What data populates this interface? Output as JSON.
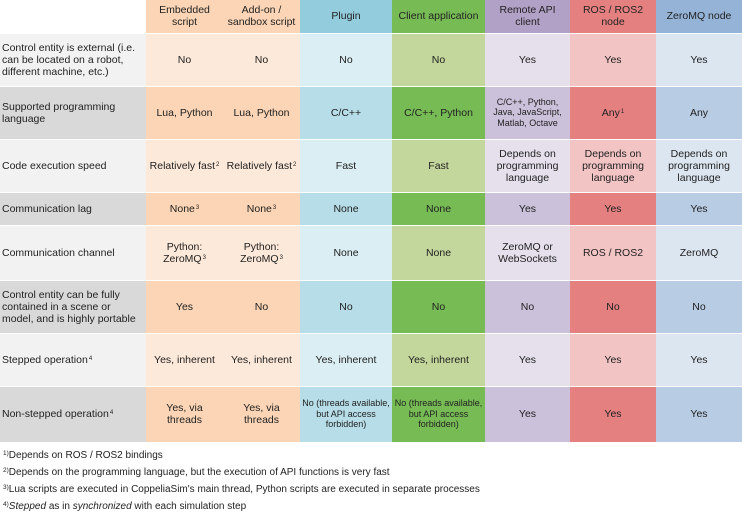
{
  "colors": {
    "label_odd": "#f2f2f2",
    "label_even": "#d9d9d9",
    "c1": [
      "#fde9d9",
      "#fbd5b5"
    ],
    "c2": [
      "#fde9d9",
      "#fbd5b5"
    ],
    "c3": [
      "#dbeef3",
      "#b7dde8"
    ],
    "c4": [
      "#c3d69b",
      "#77bb55"
    ],
    "c5": [
      "#e5e0ec",
      "#ccc1da"
    ],
    "c6": [
      "#f2c4c4",
      "#e58080"
    ],
    "c7": [
      "#dce6f1",
      "#b8cce4"
    ],
    "h": [
      "#ffffff",
      "#fbd5b5",
      "#fbd5b5",
      "#93cddd",
      "#77bb55",
      "#b2a1c7",
      "#e58080",
      "#95b3d7"
    ]
  },
  "headers": [
    {
      "text": "",
      "sup": ""
    },
    {
      "text": "Embedded script",
      "sup": ""
    },
    {
      "text": "Add-on / sandbox script",
      "sup": ""
    },
    {
      "text": "Plugin",
      "sup": ""
    },
    {
      "text": "Client application",
      "sup": ""
    },
    {
      "text": "Remote API client",
      "sup": ""
    },
    {
      "text": "ROS / ROS2 node",
      "sup": ""
    },
    {
      "text": "ZeroMQ node",
      "sup": ""
    }
  ],
  "rows": [
    {
      "label": "Control entity is external (i.e. can be located on a robot, different machine, etc.)",
      "label_sup": "",
      "cells": [
        {
          "t": "No",
          "s": ""
        },
        {
          "t": "No",
          "s": ""
        },
        {
          "t": "No",
          "s": ""
        },
        {
          "t": "No",
          "s": ""
        },
        {
          "t": "Yes",
          "s": ""
        },
        {
          "t": "Yes",
          "s": ""
        },
        {
          "t": "Yes",
          "s": ""
        }
      ]
    },
    {
      "label": "Supported programming language",
      "label_sup": "",
      "cells": [
        {
          "t": "Lua, Python",
          "s": ""
        },
        {
          "t": "Lua, Python",
          "s": ""
        },
        {
          "t": "C/C++",
          "s": ""
        },
        {
          "t": "C/C++, Python",
          "s": ""
        },
        {
          "t": "C/C++, Python, Java, JavaScript, Matlab, Octave",
          "s": "",
          "small": true
        },
        {
          "t": "Any",
          "s": "1"
        },
        {
          "t": "Any",
          "s": ""
        }
      ]
    },
    {
      "label": "Code execution speed",
      "label_sup": "",
      "cells": [
        {
          "t": "Relatively fast",
          "s": "2"
        },
        {
          "t": "Relatively fast",
          "s": "2"
        },
        {
          "t": "Fast",
          "s": ""
        },
        {
          "t": "Fast",
          "s": ""
        },
        {
          "t": "Depends on programming language",
          "s": ""
        },
        {
          "t": "Depends on programming language",
          "s": ""
        },
        {
          "t": "Depends on programming language",
          "s": ""
        }
      ]
    },
    {
      "label": "Communication lag",
      "label_sup": "",
      "cells": [
        {
          "t": "None",
          "s": "3"
        },
        {
          "t": "None",
          "s": "3"
        },
        {
          "t": "None",
          "s": ""
        },
        {
          "t": "None",
          "s": ""
        },
        {
          "t": "Yes",
          "s": ""
        },
        {
          "t": "Yes",
          "s": ""
        },
        {
          "t": "Yes",
          "s": ""
        }
      ]
    },
    {
      "label": "Communication channel",
      "label_sup": "",
      "cells": [
        {
          "t": "Python: ZeroMQ",
          "s": "3"
        },
        {
          "t": "Python: ZeroMQ",
          "s": "3"
        },
        {
          "t": "None",
          "s": ""
        },
        {
          "t": "None",
          "s": ""
        },
        {
          "t": "ZeroMQ or WebSockets",
          "s": ""
        },
        {
          "t": "ROS / ROS2",
          "s": ""
        },
        {
          "t": "ZeroMQ",
          "s": ""
        }
      ]
    },
    {
      "label": "Control entity can be fully contained in a scene or model, and is highly portable",
      "label_sup": "",
      "cells": [
        {
          "t": "Yes",
          "s": ""
        },
        {
          "t": "No",
          "s": ""
        },
        {
          "t": "No",
          "s": ""
        },
        {
          "t": "No",
          "s": ""
        },
        {
          "t": "No",
          "s": ""
        },
        {
          "t": "No",
          "s": ""
        },
        {
          "t": "No",
          "s": ""
        }
      ]
    },
    {
      "label": "Stepped operation",
      "label_sup": "4",
      "cells": [
        {
          "t": "Yes, inherent",
          "s": ""
        },
        {
          "t": "Yes, inherent",
          "s": ""
        },
        {
          "t": "Yes, inherent",
          "s": ""
        },
        {
          "t": "Yes, inherent",
          "s": ""
        },
        {
          "t": "Yes",
          "s": ""
        },
        {
          "t": "Yes",
          "s": ""
        },
        {
          "t": "Yes",
          "s": ""
        }
      ]
    },
    {
      "label": "Non-stepped operation",
      "label_sup": "4",
      "cells": [
        {
          "t": "Yes, via threads",
          "s": ""
        },
        {
          "t": "Yes, via threads",
          "s": ""
        },
        {
          "t": "No (threads available, but API access forbidden)",
          "s": "",
          "small": true
        },
        {
          "t": "No (threads available, but API access forbidden)",
          "s": "",
          "small": true
        },
        {
          "t": "Yes",
          "s": ""
        },
        {
          "t": "Yes",
          "s": ""
        },
        {
          "t": "Yes",
          "s": ""
        }
      ]
    }
  ],
  "footnotes": [
    {
      "mark": "1)",
      "text": "Depends on ROS / ROS2 bindings"
    },
    {
      "mark": "2)",
      "text": "Depends on the programming language, but the execution of API functions is very fast"
    },
    {
      "mark": "3)",
      "text": "Lua scripts are executed in CoppeliaSim's main thread, Python scripts are executed in separate processes"
    },
    {
      "mark": "4)",
      "italic1": "Stepped",
      "mid": " as in ",
      "italic2": "synchronized",
      "tail": " with each simulation step"
    }
  ]
}
